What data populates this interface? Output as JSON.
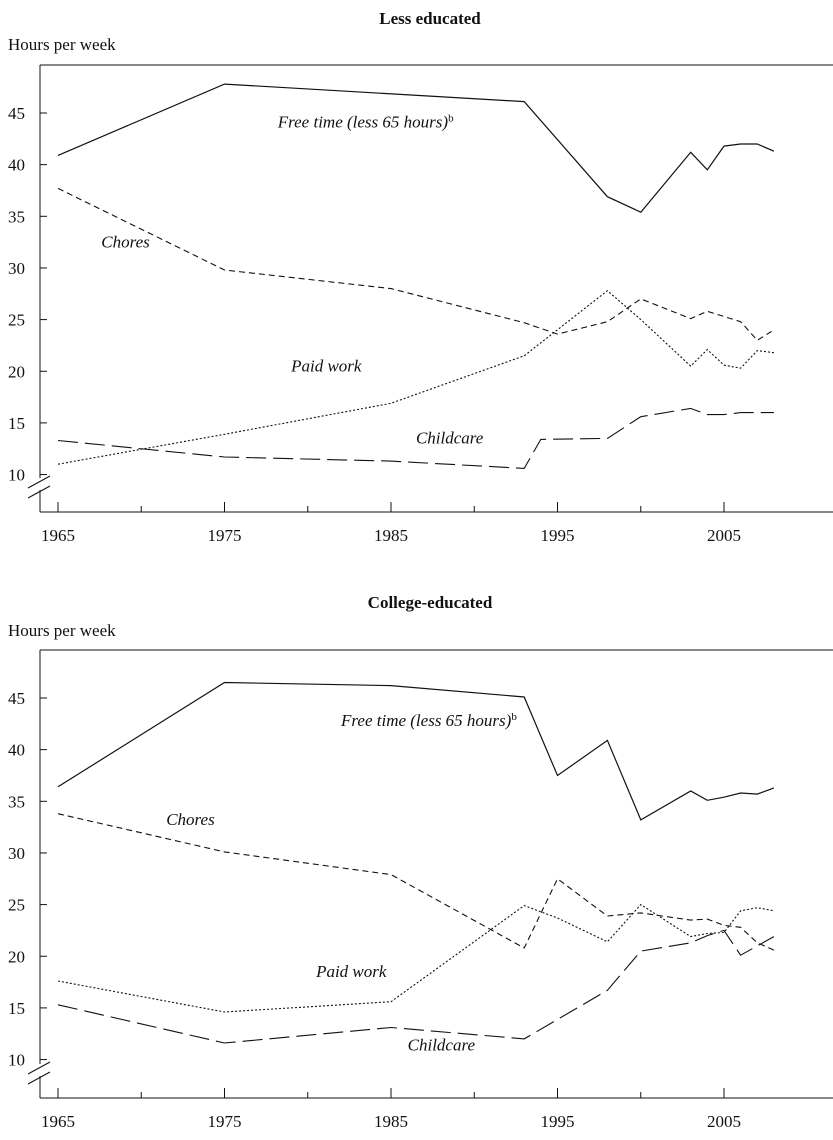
{
  "chart_data": [
    {
      "type": "line",
      "title": "Less educated",
      "ylabel": "Hours per week",
      "xlabel": "",
      "xlim": [
        1965,
        2008
      ],
      "ylim": [
        6,
        50
      ],
      "yticks": [
        10,
        15,
        20,
        25,
        30,
        35,
        40,
        45
      ],
      "xticks": [
        1965,
        1975,
        1985,
        1995,
        2005
      ],
      "axis_break": true,
      "grid": false,
      "series": [
        {
          "name": "Free time (less 65 hours)",
          "superscript": "b",
          "style": "solid",
          "x": [
            1965,
            1975,
            1993,
            1998,
            2000,
            2003,
            2004,
            2005,
            2006,
            2007,
            2008
          ],
          "y": [
            40.9,
            47.8,
            46.1,
            36.9,
            35.4,
            41.2,
            39.5,
            41.8,
            42.0,
            42.0,
            41.3
          ]
        },
        {
          "name": "Chores",
          "style": "dashed",
          "x": [
            1965,
            1975,
            1985,
            1993,
            1995,
            1998,
            2000,
            2003,
            2004,
            2006,
            2007,
            2008
          ],
          "y": [
            37.7,
            29.8,
            28.0,
            24.7,
            23.6,
            24.8,
            27.0,
            25.1,
            25.8,
            24.8,
            23.0,
            24.0
          ]
        },
        {
          "name": "Paid work",
          "style": "dotted",
          "x": [
            1965,
            1975,
            1985,
            1993,
            1998,
            2000,
            2003,
            2004,
            2005,
            2006,
            2007,
            2008
          ],
          "y": [
            11.0,
            13.9,
            16.9,
            21.5,
            27.8,
            25.0,
            20.5,
            22.1,
            20.6,
            20.3,
            22.0,
            21.8
          ]
        },
        {
          "name": "Childcare",
          "style": "long-dashed",
          "x": [
            1965,
            1975,
            1985,
            1993,
            1994,
            1998,
            2000,
            2003,
            2004,
            2005,
            2006,
            2008
          ],
          "y": [
            13.3,
            11.7,
            11.3,
            10.6,
            13.4,
            13.5,
            15.6,
            16.4,
            15.8,
            15.8,
            16.0,
            16.0
          ]
        }
      ]
    },
    {
      "type": "line",
      "title": "College-educated",
      "ylabel": "Hours per week",
      "xlabel": "",
      "xlim": [
        1965,
        2008
      ],
      "ylim": [
        6,
        50
      ],
      "yticks": [
        10,
        15,
        20,
        25,
        30,
        35,
        40,
        45
      ],
      "xticks": [
        1965,
        1975,
        1985,
        1995,
        2005
      ],
      "axis_break": true,
      "grid": false,
      "series": [
        {
          "name": "Free time (less 65 hours)",
          "superscript": "b",
          "style": "solid",
          "x": [
            1965,
            1975,
            1985,
            1993,
            1995,
            1998,
            2000,
            2003,
            2004,
            2005,
            2006,
            2007,
            2008
          ],
          "y": [
            36.4,
            46.5,
            46.2,
            45.1,
            37.5,
            40.9,
            33.2,
            36.0,
            35.1,
            35.4,
            35.8,
            35.7,
            36.3
          ]
        },
        {
          "name": "Chores",
          "style": "dashed",
          "x": [
            1965,
            1975,
            1985,
            1993,
            1995,
            1998,
            2000,
            2003,
            2004,
            2005,
            2006,
            2007,
            2008
          ],
          "y": [
            33.8,
            30.1,
            27.9,
            20.8,
            27.5,
            23.9,
            24.2,
            23.5,
            23.6,
            23.0,
            22.8,
            21.3,
            20.6
          ]
        },
        {
          "name": "Paid work",
          "style": "dotted",
          "x": [
            1965,
            1975,
            1985,
            1993,
            1995,
            1998,
            2000,
            2003,
            2004,
            2005,
            2006,
            2007,
            2008
          ],
          "y": [
            17.6,
            14.6,
            15.6,
            24.9,
            23.7,
            21.4,
            25.0,
            21.9,
            22.2,
            22.3,
            24.4,
            24.7,
            24.4
          ]
        },
        {
          "name": "Childcare",
          "style": "long-dashed",
          "x": [
            1965,
            1975,
            1985,
            1993,
            1998,
            2000,
            2003,
            2004,
            2005,
            2006,
            2007,
            2008
          ],
          "y": [
            15.3,
            11.6,
            13.1,
            12.0,
            16.7,
            20.5,
            21.3,
            22.0,
            22.5,
            20.1,
            21.0,
            21.9
          ]
        }
      ]
    }
  ],
  "annotations": [
    [
      {
        "series": 0,
        "text": "Free time (less 65 hours)",
        "sup": "b",
        "x": 1978.2,
        "y": 43.6
      },
      {
        "series": 1,
        "text": "Chores",
        "x": 1967.6,
        "y": 32.0
      },
      {
        "series": 2,
        "text": "Paid work",
        "x": 1979.0,
        "y": 20.0
      },
      {
        "series": 3,
        "text": "Childcare",
        "x": 1986.5,
        "y": 13.0
      }
    ],
    [
      {
        "series": 0,
        "text": "Free time (less 65 hours)",
        "sup": "b",
        "x": 1982.0,
        "y": 42.3
      },
      {
        "series": 1,
        "text": "Chores",
        "x": 1971.5,
        "y": 32.7
      },
      {
        "series": 2,
        "text": "Paid work",
        "x": 1980.5,
        "y": 18.0
      },
      {
        "series": 3,
        "text": "Childcare",
        "x": 1986.0,
        "y": 10.9
      }
    ]
  ]
}
